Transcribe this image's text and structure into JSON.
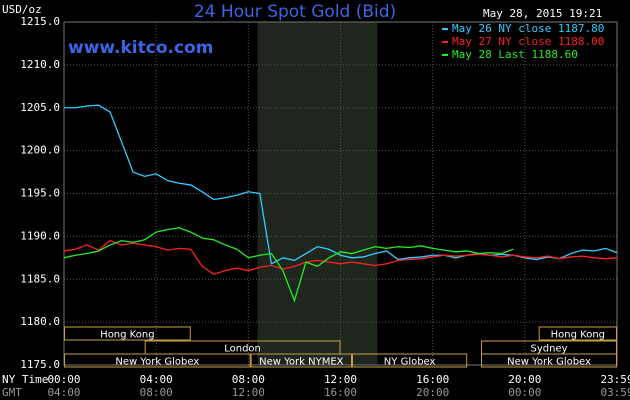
{
  "chart_data": {
    "type": "line",
    "title": "24 Hour Spot Gold (Bid)",
    "ylabel": "USD/oz",
    "watermark": "www.kitco.com",
    "timestamp": "May 28, 2015 19:21",
    "row_labels": [
      "NY Time",
      "GMT"
    ],
    "gmt_labels": [
      "04:00",
      "08:00",
      "12:00",
      "16:00",
      "20:00",
      "00:00",
      "03:59"
    ],
    "xlim": [
      0,
      24
    ],
    "xticks": [
      {
        "value": 0,
        "label": "00:00"
      },
      {
        "value": 4,
        "label": "04:00"
      },
      {
        "value": 8,
        "label": "08:00"
      },
      {
        "value": 12,
        "label": "12:00"
      },
      {
        "value": 16,
        "label": "16:00"
      },
      {
        "value": 20,
        "label": "20:00"
      },
      {
        "value": 24,
        "label": "23:59"
      }
    ],
    "ylim": [
      1175,
      1215
    ],
    "yticks": [
      {
        "value": 1175,
        "label": "1175.0"
      },
      {
        "value": 1180,
        "label": "1180.0"
      },
      {
        "value": 1185,
        "label": "1185.0"
      },
      {
        "value": 1190,
        "label": "1190.0"
      },
      {
        "value": 1195,
        "label": "1195.0"
      },
      {
        "value": 1200,
        "label": "1200.0"
      },
      {
        "value": 1205,
        "label": "1205.0"
      },
      {
        "value": 1210,
        "label": "1210.0"
      },
      {
        "value": 1215,
        "label": "1215.0"
      }
    ],
    "grid": true,
    "shaded_x": [
      8.4,
      13.6
    ],
    "x": [
      0,
      0.5,
      1,
      1.5,
      2,
      2.5,
      3,
      3.5,
      4,
      4.5,
      5,
      5.5,
      6,
      6.5,
      7,
      7.5,
      8,
      8.5,
      9,
      9.5,
      10,
      10.5,
      11,
      11.5,
      12,
      12.5,
      13,
      13.5,
      14,
      14.5,
      15,
      15.5,
      16,
      16.5,
      17,
      17.5,
      18,
      18.5,
      19,
      19.5,
      20,
      20.5,
      21,
      21.5,
      22,
      22.5,
      23,
      23.5,
      24
    ],
    "series": [
      {
        "name": "May 26 NY close 1187.80",
        "color": "#33ccff",
        "values": [
          1205.0,
          1205.0,
          1205.2,
          1205.3,
          1204.5,
          1201.0,
          1197.5,
          1197.0,
          1197.3,
          1196.5,
          1196.2,
          1196.0,
          1195.2,
          1194.3,
          1194.5,
          1194.8,
          1195.2,
          1195.0,
          1186.8,
          1187.5,
          1187.2,
          1188.0,
          1188.8,
          1188.5,
          1187.8,
          1187.5,
          1187.6,
          1188.0,
          1188.3,
          1187.3,
          1187.5,
          1187.6,
          1187.8,
          1187.8,
          1187.5,
          1187.8,
          1188.0,
          1187.8,
          1187.9,
          1187.8,
          1187.5,
          1187.3,
          1187.6,
          1187.4,
          1188.0,
          1188.4,
          1188.3,
          1188.6,
          1188.1
        ]
      },
      {
        "name": "May 27 NY close 1188.00",
        "color": "#ff2020",
        "values": [
          1188.3,
          1188.5,
          1189.0,
          1188.4,
          1189.5,
          1189.0,
          1189.2,
          1189.0,
          1188.8,
          1188.4,
          1188.6,
          1188.5,
          1186.5,
          1185.6,
          1186.0,
          1186.3,
          1186.0,
          1186.4,
          1186.6,
          1186.2,
          1186.5,
          1187.0,
          1187.2,
          1187.0,
          1186.8,
          1187.0,
          1186.8,
          1186.6,
          1186.8,
          1187.2,
          1187.3,
          1187.4,
          1187.6,
          1187.8,
          1187.7,
          1187.8,
          1187.9,
          1187.8,
          1187.6,
          1187.8,
          1187.6,
          1187.5,
          1187.7,
          1187.4,
          1187.6,
          1187.7,
          1187.5,
          1187.4,
          1187.5
        ]
      },
      {
        "name": "May 28 Last 1188.60",
        "color": "#22ee22",
        "values": [
          1187.5,
          1187.8,
          1188.0,
          1188.3,
          1189.0,
          1189.5,
          1189.3,
          1189.6,
          1190.5,
          1190.8,
          1191.0,
          1190.5,
          1189.8,
          1189.6,
          1189.0,
          1188.5,
          1187.5,
          1187.8,
          1188.0,
          1186.0,
          1182.5,
          1187.0,
          1186.5,
          1187.5,
          1188.2,
          1188.0,
          1188.4,
          1188.8,
          1188.6,
          1188.8,
          1188.7,
          1188.9,
          1188.6,
          1188.4,
          1188.2,
          1188.3,
          1188.0,
          1188.1,
          1188.0,
          1188.5,
          null,
          null,
          null,
          null,
          null,
          null,
          null,
          null,
          null
        ]
      }
    ],
    "sessions": [
      [
        {
          "name": "Hong Kong",
          "start": 0,
          "end": 5.5
        },
        {
          "name": "Hong Kong",
          "start": 20.6,
          "end": 24
        }
      ],
      [
        {
          "name": "London",
          "start": 3.5,
          "end": 12
        },
        {
          "name": "Sydney",
          "start": 18.1,
          "end": 24
        }
      ],
      [
        {
          "name": "New York Globex",
          "start": 0,
          "end": 8.1
        },
        {
          "name": "New York NYMEX",
          "start": 8.1,
          "end": 12.5
        },
        {
          "name": "NY Globex",
          "start": 12.5,
          "end": 17.5
        },
        {
          "name": "New York Globex",
          "start": 18.1,
          "end": 24
        }
      ]
    ]
  }
}
